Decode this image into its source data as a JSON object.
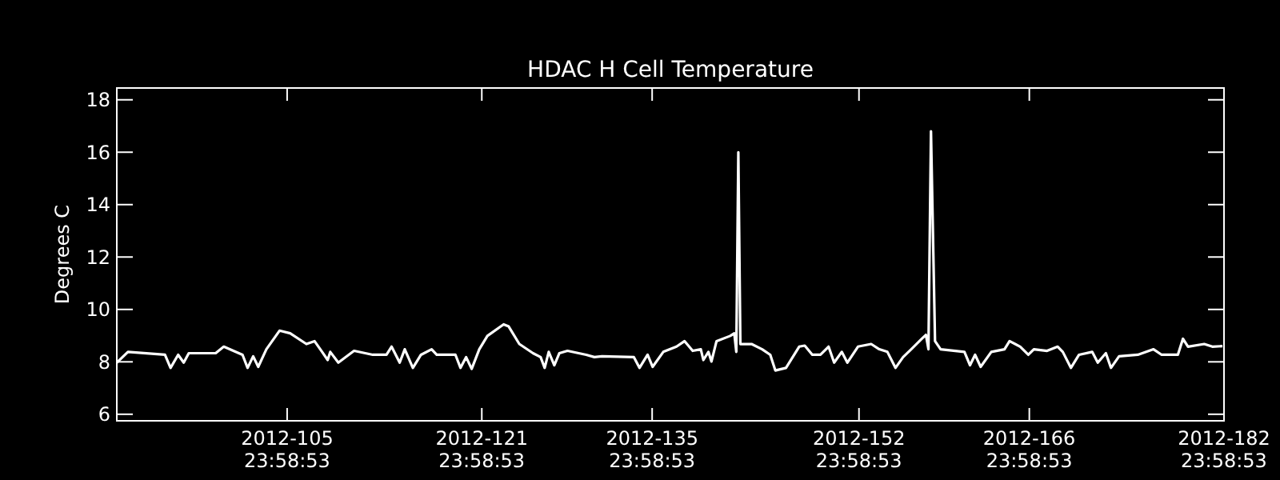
{
  "chart_data": {
    "type": "line",
    "title": "HDAC H Cell Temperature",
    "ylabel": "Degrees C",
    "xlim": [
      "2012-04-01T00:00",
      "2012-07-01T00:00"
    ],
    "ylim": [
      5.75,
      18.45
    ],
    "xticks": [
      {
        "value": "2012-04-14T23:59",
        "label": "2012-105\n23:58:53"
      },
      {
        "value": "2012-04-30T23:59",
        "label": "2012-121\n23:58:53"
      },
      {
        "value": "2012-05-14T23:59",
        "label": "2012-135\n23:58:53"
      },
      {
        "value": "2012-05-31T23:59",
        "label": "2012-152\n23:58:53"
      },
      {
        "value": "2012-06-14T23:59",
        "label": "2012-166\n23:58:53"
      },
      {
        "value": "2012-06-30T23:59",
        "label": "2012-182\n23:58:53"
      }
    ],
    "yticks": [
      6,
      8,
      10,
      12,
      14,
      16,
      18
    ],
    "grid": false,
    "marker": "none",
    "line_style": "solid",
    "series": [
      {
        "color": "#ffffff",
        "x": [
          "2012-04-01T00:00",
          "2012-04-01T22:00",
          "2012-04-04T23:00",
          "2012-04-05T10:00",
          "2012-04-06T01:00",
          "2012-04-06T12:00",
          "2012-04-06T22:00",
          "2012-04-09T03:00",
          "2012-04-09T19:00",
          "2012-04-11T08:00",
          "2012-04-11T18:00",
          "2012-04-12T05:00",
          "2012-04-12T15:00",
          "2012-04-13T07:00",
          "2012-04-14T09:00",
          "2012-04-15T06:00",
          "2012-04-16T14:00",
          "2012-04-17T06:00",
          "2012-04-17T21:00",
          "2012-04-18T08:00",
          "2012-04-18T13:00",
          "2012-04-19T05:00",
          "2012-04-20T12:00",
          "2012-04-22T01:00",
          "2012-04-23T04:00",
          "2012-04-23T14:00",
          "2012-04-24T06:00",
          "2012-04-24T16:00",
          "2012-04-25T08:00",
          "2012-04-26T00:00",
          "2012-04-26T21:00",
          "2012-04-27T07:00",
          "2012-04-28T20:00",
          "2012-04-29T06:00",
          "2012-04-29T17:00",
          "2012-04-30T04:00",
          "2012-04-30T19:00",
          "2012-05-01T11:00",
          "2012-05-02T19:00",
          "2012-05-03T05:00",
          "2012-05-04T02:00",
          "2012-05-05T05:00",
          "2012-05-05T20:00",
          "2012-05-06T04:00",
          "2012-05-06T12:00",
          "2012-05-06T23:00",
          "2012-05-07T09:00",
          "2012-05-08T01:00",
          "2012-05-09T14:00",
          "2012-05-10T06:00",
          "2012-05-10T21:00",
          "2012-05-13T12:00",
          "2012-05-13T23:00",
          "2012-05-14T15:00",
          "2012-05-15T01:00",
          "2012-05-15T22:00",
          "2012-05-17T00:00",
          "2012-05-17T16:00",
          "2012-05-18T08:00",
          "2012-05-19T00:00",
          "2012-05-19T05:00",
          "2012-05-19T15:00",
          "2012-05-19T21:00",
          "2012-05-20T07:00",
          "2012-05-21T10:00",
          "2012-05-21T18:00",
          "2012-05-21T22:00",
          "2012-05-22T02:00",
          "2012-05-22T06:00",
          "2012-05-23T04:00",
          "2012-05-24T01:00",
          "2012-05-24T17:00",
          "2012-05-25T03:00",
          "2012-05-26T00:00",
          "2012-05-27T02:00",
          "2012-05-27T13:00",
          "2012-05-28T04:00",
          "2012-05-28T20:00",
          "2012-05-29T12:00",
          "2012-05-29T23:00",
          "2012-05-30T14:00",
          "2012-05-31T01:00",
          "2012-05-31T22:00",
          "2012-06-02T00:00",
          "2012-06-02T16:00",
          "2012-06-03T08:00",
          "2012-06-04T00:00",
          "2012-06-04T15:00",
          "2012-06-05T07:00",
          "2012-06-06T04:00",
          "2012-06-06T12:00",
          "2012-06-06T17:00",
          "2012-06-06T22:00",
          "2012-06-07T06:00",
          "2012-06-07T17:00",
          "2012-06-09T16:00",
          "2012-06-10T03:00",
          "2012-06-10T13:00",
          "2012-06-11T00:00",
          "2012-06-11T21:00",
          "2012-06-12T23:00",
          "2012-06-13T09:00",
          "2012-06-14T06:00",
          "2012-06-14T22:00",
          "2012-06-15T09:00",
          "2012-06-16T11:00",
          "2012-06-17T08:00",
          "2012-06-17T18:00",
          "2012-06-18T10:00",
          "2012-06-19T02:00",
          "2012-06-20T04:00",
          "2012-06-20T15:00",
          "2012-06-21T07:00",
          "2012-06-21T17:00",
          "2012-06-22T09:00",
          "2012-06-23T22:00",
          "2012-06-25T05:00",
          "2012-06-25T21:00",
          "2012-06-27T05:00",
          "2012-06-27T15:00",
          "2012-06-28T01:00",
          "2012-06-29T09:00",
          "2012-06-30T01:00",
          "2012-06-30T21:00"
        ],
        "values": [
          7.97,
          8.38,
          8.27,
          7.77,
          8.27,
          7.97,
          8.33,
          8.33,
          8.58,
          8.27,
          7.77,
          8.21,
          7.81,
          8.48,
          9.19,
          9.09,
          8.68,
          8.79,
          8.38,
          8.07,
          8.38,
          7.97,
          8.42,
          8.27,
          8.27,
          8.58,
          7.97,
          8.48,
          7.77,
          8.27,
          8.48,
          8.27,
          8.27,
          7.77,
          8.18,
          7.73,
          8.48,
          8.99,
          9.43,
          9.35,
          8.68,
          8.33,
          8.18,
          7.77,
          8.38,
          7.87,
          8.33,
          8.42,
          8.27,
          8.18,
          8.21,
          8.18,
          7.77,
          8.27,
          7.81,
          8.38,
          8.58,
          8.79,
          8.42,
          8.48,
          8.07,
          8.38,
          8.01,
          8.79,
          8.99,
          9.09,
          8.38,
          16.0,
          8.68,
          8.68,
          8.48,
          8.27,
          7.67,
          7.77,
          8.58,
          8.62,
          8.27,
          8.27,
          8.58,
          7.97,
          8.38,
          7.97,
          8.58,
          8.68,
          8.48,
          8.38,
          7.77,
          8.18,
          8.48,
          8.88,
          9.03,
          8.48,
          16.8,
          8.79,
          8.48,
          8.38,
          7.87,
          8.27,
          7.81,
          8.38,
          8.48,
          8.79,
          8.58,
          8.27,
          8.48,
          8.42,
          8.58,
          8.38,
          7.77,
          8.27,
          8.38,
          7.97,
          8.33,
          7.77,
          8.21,
          8.27,
          8.48,
          8.27,
          8.27,
          8.88,
          8.58,
          8.68,
          8.58,
          8.6
        ]
      }
    ]
  }
}
